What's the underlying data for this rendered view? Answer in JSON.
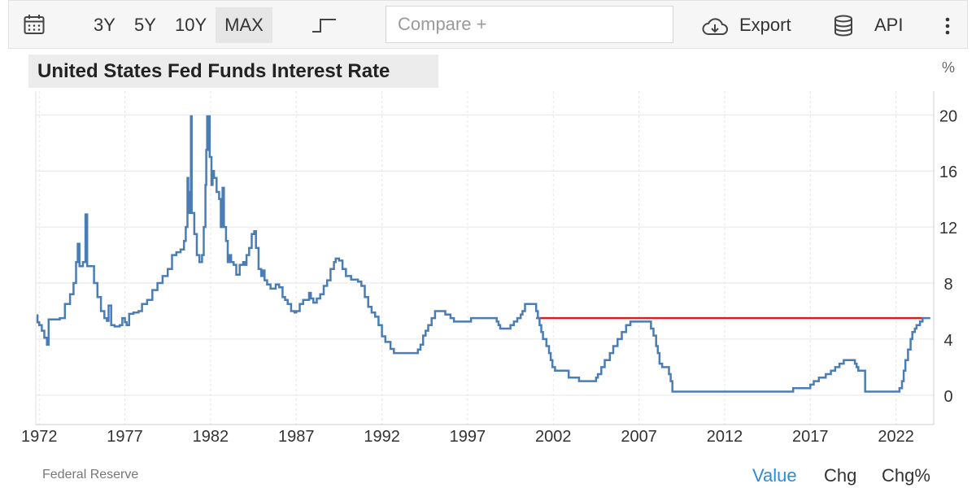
{
  "toolbar": {
    "calendar_icon": "calendar-icon",
    "ranges": [
      "3Y",
      "5Y",
      "10Y",
      "MAX"
    ],
    "active_range": "MAX",
    "chart_type_icon": "step-line-icon",
    "compare_placeholder": "Compare +",
    "export_label": "Export",
    "export_icon": "cloud-download-icon",
    "api_label": "API",
    "api_icon": "database-icon",
    "more_icon": "vertical-dots-icon"
  },
  "footer": {
    "source": "Federal Reserve",
    "tabs": [
      "Value",
      "Chg",
      "Chg%"
    ],
    "active_tab": "Value"
  },
  "colors": {
    "series": "#4a7db5",
    "reference_line": "#d62020",
    "active_tab": "#2e8bd7",
    "grid": "#e6e6e6"
  },
  "chart_data": {
    "type": "line",
    "title": "United States Fed Funds Interest Rate",
    "ylabel": "%",
    "xlabel": "",
    "xlim": [
      1971.8,
      2024.2
    ],
    "ylim": [
      -2.1,
      21.7
    ],
    "yticks": [
      0,
      4,
      8,
      12,
      16,
      20
    ],
    "xticks": [
      "1972",
      "1977",
      "1982",
      "1987",
      "1992",
      "1997",
      "2002",
      "2007",
      "2012",
      "2017",
      "2022"
    ],
    "grid": true,
    "step": true,
    "reference_line": {
      "value": 5.5,
      "from": 2001.0,
      "to": 2023.6
    },
    "series": [
      {
        "points": [
          [
            1971.85,
            5.7
          ],
          [
            1971.9,
            5.2
          ],
          [
            1972.0,
            5.0
          ],
          [
            1972.15,
            4.6
          ],
          [
            1972.3,
            4.1
          ],
          [
            1972.45,
            3.6
          ],
          [
            1972.55,
            5.4
          ],
          [
            1973.0,
            5.4
          ],
          [
            1973.2,
            5.5
          ],
          [
            1973.5,
            6.5
          ],
          [
            1973.8,
            7.2
          ],
          [
            1974.0,
            8.0
          ],
          [
            1974.15,
            9.5
          ],
          [
            1974.25,
            10.8
          ],
          [
            1974.35,
            9.2
          ],
          [
            1974.55,
            9.5
          ],
          [
            1974.7,
            12.9
          ],
          [
            1974.8,
            9.2
          ],
          [
            1975.0,
            9.2
          ],
          [
            1975.2,
            8.0
          ],
          [
            1975.4,
            7.0
          ],
          [
            1975.6,
            6.0
          ],
          [
            1975.8,
            5.5
          ],
          [
            1975.95,
            5.3
          ],
          [
            1976.05,
            6.4
          ],
          [
            1976.2,
            5.0
          ],
          [
            1976.4,
            4.9
          ],
          [
            1976.7,
            5.0
          ],
          [
            1976.85,
            5.5
          ],
          [
            1977.0,
            5.2
          ],
          [
            1977.1,
            5.0
          ],
          [
            1977.25,
            5.8
          ],
          [
            1977.5,
            5.9
          ],
          [
            1977.8,
            6.0
          ],
          [
            1978.0,
            6.5
          ],
          [
            1978.3,
            6.8
          ],
          [
            1978.6,
            7.5
          ],
          [
            1978.9,
            8.0
          ],
          [
            1979.2,
            8.5
          ],
          [
            1979.5,
            9.0
          ],
          [
            1979.75,
            10.0
          ],
          [
            1980.0,
            10.2
          ],
          [
            1980.25,
            10.4
          ],
          [
            1980.45,
            11.0
          ],
          [
            1980.55,
            12.0
          ],
          [
            1980.65,
            15.5
          ],
          [
            1980.7,
            13.0
          ],
          [
            1980.78,
            14.5
          ],
          [
            1980.85,
            19.9
          ],
          [
            1980.9,
            13.0
          ],
          [
            1981.05,
            11.5
          ],
          [
            1981.2,
            10.0
          ],
          [
            1981.35,
            9.5
          ],
          [
            1981.5,
            10.0
          ],
          [
            1981.6,
            12.0
          ],
          [
            1981.7,
            15.0
          ],
          [
            1981.75,
            17.5
          ],
          [
            1981.8,
            19.9
          ],
          [
            1981.85,
            17.5
          ],
          [
            1981.9,
            19.9
          ],
          [
            1981.95,
            17.0
          ],
          [
            1982.05,
            15.0
          ],
          [
            1982.12,
            16.0
          ],
          [
            1982.2,
            15.5
          ],
          [
            1982.35,
            14.5
          ],
          [
            1982.5,
            14.0
          ],
          [
            1982.6,
            12.0
          ],
          [
            1982.7,
            14.8
          ],
          [
            1982.78,
            12.0
          ],
          [
            1982.9,
            11.0
          ],
          [
            1983.0,
            9.5
          ],
          [
            1983.1,
            10.0
          ],
          [
            1983.2,
            9.5
          ],
          [
            1983.35,
            9.3
          ],
          [
            1983.5,
            8.6
          ],
          [
            1983.7,
            9.3
          ],
          [
            1983.9,
            9.5
          ],
          [
            1984.0,
            9.3
          ],
          [
            1984.1,
            10.0
          ],
          [
            1984.25,
            10.5
          ],
          [
            1984.4,
            11.5
          ],
          [
            1984.55,
            11.7
          ],
          [
            1984.65,
            10.5
          ],
          [
            1984.8,
            9.0
          ],
          [
            1984.95,
            8.5
          ],
          [
            1985.05,
            8.9
          ],
          [
            1985.15,
            8.2
          ],
          [
            1985.3,
            7.9
          ],
          [
            1985.5,
            7.6
          ],
          [
            1985.8,
            7.9
          ],
          [
            1986.0,
            7.7
          ],
          [
            1986.2,
            7.0
          ],
          [
            1986.35,
            6.8
          ],
          [
            1986.5,
            6.5
          ],
          [
            1986.7,
            6.0
          ],
          [
            1986.9,
            5.9
          ],
          [
            1987.0,
            6.0
          ],
          [
            1987.2,
            6.5
          ],
          [
            1987.4,
            6.8
          ],
          [
            1987.6,
            6.8
          ],
          [
            1987.75,
            7.3
          ],
          [
            1987.85,
            6.9
          ],
          [
            1988.0,
            6.6
          ],
          [
            1988.2,
            6.9
          ],
          [
            1988.4,
            7.2
          ],
          [
            1988.6,
            7.8
          ],
          [
            1988.8,
            8.2
          ],
          [
            1989.0,
            9.0
          ],
          [
            1989.2,
            9.5
          ],
          [
            1989.3,
            9.75
          ],
          [
            1989.5,
            9.6
          ],
          [
            1989.7,
            9.0
          ],
          [
            1989.9,
            8.5
          ],
          [
            1990.2,
            8.25
          ],
          [
            1990.6,
            8.1
          ],
          [
            1990.8,
            7.8
          ],
          [
            1991.0,
            7.0
          ],
          [
            1991.2,
            6.3
          ],
          [
            1991.4,
            5.9
          ],
          [
            1991.6,
            5.6
          ],
          [
            1991.8,
            5.0
          ],
          [
            1992.0,
            4.2
          ],
          [
            1992.2,
            3.8
          ],
          [
            1992.5,
            3.3
          ],
          [
            1992.7,
            3.0
          ],
          [
            1993.0,
            3.0
          ],
          [
            1993.5,
            3.0
          ],
          [
            1994.0,
            3.0
          ],
          [
            1994.1,
            3.25
          ],
          [
            1994.25,
            3.6
          ],
          [
            1994.4,
            4.25
          ],
          [
            1994.55,
            4.6
          ],
          [
            1994.7,
            5.0
          ],
          [
            1994.9,
            5.5
          ],
          [
            1995.1,
            6.0
          ],
          [
            1995.5,
            6.0
          ],
          [
            1995.7,
            5.75
          ],
          [
            1996.0,
            5.5
          ],
          [
            1996.2,
            5.25
          ],
          [
            1996.5,
            5.25
          ],
          [
            1997.0,
            5.25
          ],
          [
            1997.2,
            5.5
          ],
          [
            1997.5,
            5.5
          ],
          [
            1998.0,
            5.5
          ],
          [
            1998.6,
            5.5
          ],
          [
            1998.7,
            5.25
          ],
          [
            1998.8,
            5.0
          ],
          [
            1998.9,
            4.75
          ],
          [
            1999.3,
            4.75
          ],
          [
            1999.5,
            5.0
          ],
          [
            1999.7,
            5.25
          ],
          [
            1999.9,
            5.5
          ],
          [
            2000.1,
            5.75
          ],
          [
            2000.2,
            6.0
          ],
          [
            2000.35,
            6.5
          ],
          [
            2000.9,
            6.5
          ],
          [
            2001.0,
            6.0
          ],
          [
            2001.1,
            5.5
          ],
          [
            2001.2,
            5.0
          ],
          [
            2001.3,
            4.5
          ],
          [
            2001.4,
            4.0
          ],
          [
            2001.6,
            3.5
          ],
          [
            2001.75,
            3.0
          ],
          [
            2001.85,
            2.5
          ],
          [
            2001.95,
            2.0
          ],
          [
            2002.1,
            1.75
          ],
          [
            2002.5,
            1.75
          ],
          [
            2002.9,
            1.25
          ],
          [
            2003.4,
            1.25
          ],
          [
            2003.5,
            1.0
          ],
          [
            2004.4,
            1.0
          ],
          [
            2004.5,
            1.25
          ],
          [
            2004.6,
            1.5
          ],
          [
            2004.8,
            2.0
          ],
          [
            2005.0,
            2.5
          ],
          [
            2005.3,
            3.0
          ],
          [
            2005.5,
            3.5
          ],
          [
            2005.75,
            4.0
          ],
          [
            2006.0,
            4.5
          ],
          [
            2006.25,
            5.0
          ],
          [
            2006.5,
            5.25
          ],
          [
            2007.5,
            5.25
          ],
          [
            2007.7,
            4.75
          ],
          [
            2007.85,
            4.25
          ],
          [
            2008.0,
            3.5
          ],
          [
            2008.1,
            3.0
          ],
          [
            2008.2,
            2.25
          ],
          [
            2008.35,
            2.0
          ],
          [
            2008.75,
            1.5
          ],
          [
            2008.85,
            1.0
          ],
          [
            2008.95,
            0.25
          ],
          [
            2012.0,
            0.25
          ],
          [
            2015.9,
            0.25
          ],
          [
            2016.0,
            0.5
          ],
          [
            2016.9,
            0.5
          ],
          [
            2017.0,
            0.75
          ],
          [
            2017.2,
            1.0
          ],
          [
            2017.5,
            1.25
          ],
          [
            2017.9,
            1.5
          ],
          [
            2018.2,
            1.75
          ],
          [
            2018.45,
            2.0
          ],
          [
            2018.7,
            2.25
          ],
          [
            2018.95,
            2.5
          ],
          [
            2019.5,
            2.5
          ],
          [
            2019.6,
            2.25
          ],
          [
            2019.7,
            2.0
          ],
          [
            2019.8,
            1.75
          ],
          [
            2020.15,
            1.75
          ],
          [
            2020.2,
            0.25
          ],
          [
            2021.0,
            0.25
          ],
          [
            2022.0,
            0.25
          ],
          [
            2022.2,
            0.5
          ],
          [
            2022.35,
            1.0
          ],
          [
            2022.45,
            1.75
          ],
          [
            2022.55,
            2.5
          ],
          [
            2022.7,
            3.25
          ],
          [
            2022.85,
            4.0
          ],
          [
            2022.95,
            4.5
          ],
          [
            2023.1,
            4.75
          ],
          [
            2023.2,
            5.0
          ],
          [
            2023.4,
            5.25
          ],
          [
            2023.55,
            5.5
          ],
          [
            2024.0,
            5.5
          ]
        ]
      }
    ]
  }
}
